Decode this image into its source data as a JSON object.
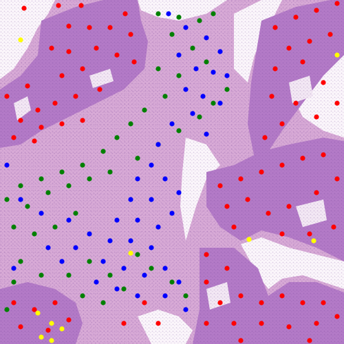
{
  "image": {
    "kind": "histology tissue micrograph (H&E stain) with colored nucleus point annotations",
    "colors": {
      "background_white": "#fbf6fb",
      "stroma_pink": "#d9a9d4",
      "epithelium_purple": "#b57ac6",
      "nucleus_dark": "#5e2f86",
      "lumen_white": "#f5eef7"
    }
  },
  "annotation_legend": {
    "red": "#ff0000",
    "green": "#008000",
    "blue": "#0000ff",
    "yellow": "#ffff00"
  }
}
